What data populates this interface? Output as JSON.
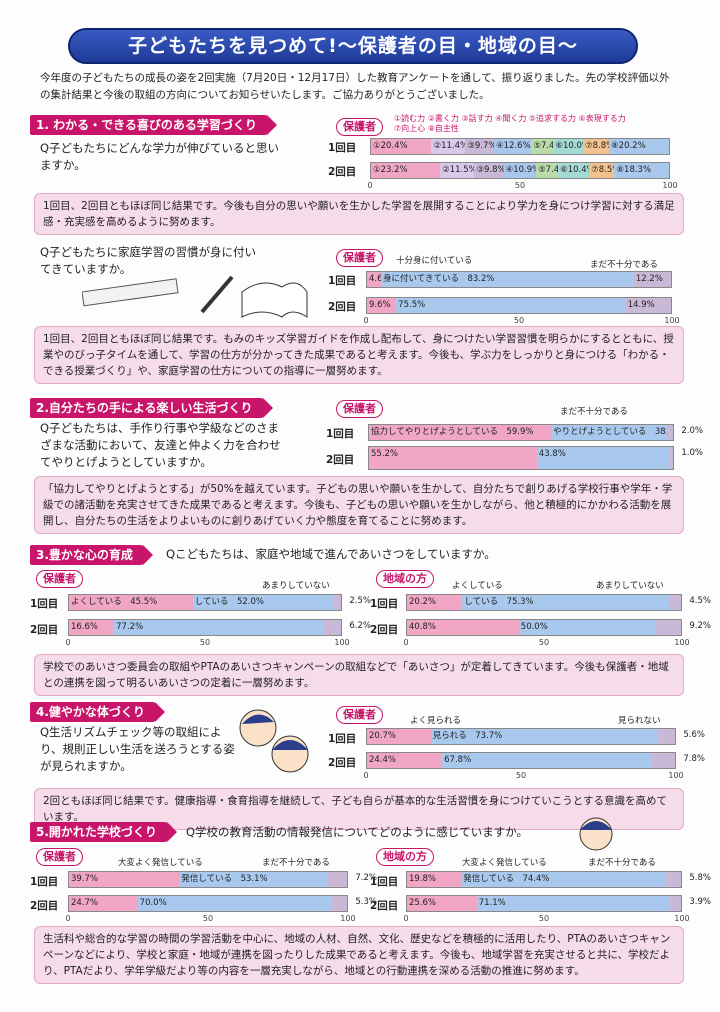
{
  "title": "子どもたちを見つめて!〜保護者の目・地域の目〜",
  "intro": "今年度の子どもたちの成長の姿を2回実施（7月20日・12月17日）した教育アンケートを通して、振り返りました。先の学校評価以外の集計結果と今後の取組の方向についてお知らせいたします。ご協力ありがとうございました。",
  "labels": {
    "guardian": "保護者",
    "community": "地域の方",
    "r1": "1回目",
    "r2": "2回目"
  },
  "s1": {
    "title": "1. わかる・できる喜びのある学習づくり",
    "q": "Q子どもたちにどんな学力が伸びていると思いますか。",
    "legend1": "①読む力 ②書く力 ③話す力 ④聞く力 ⑤追求する力 ⑥表現する力",
    "legend2": "⑦向上心 ⑧自主性",
    "note": "1回目、2回目ともほぼ同じ結果です。今後も自分の思いや願いを生かした学習を展開することにより学力を身につけ学習に対する満足感・充実感を高めるように努めます。",
    "q2": "Q子どもたちに家庭学習の習慣が身に付いてきていますか。",
    "cap2a": "十分身に付いている",
    "cap2b": "まだ不十分である",
    "note2": "1回目、2回目ともほぼ同じ結果です。もみのキッズ学習ガイドを作成し配布して、身につけたい学習習慣を明らかにするとともに、授業やのびっ子タイムを通して、学習の仕方が分かってきた成果であると考えます。今後も、学ぶ力をしっかりと身につける「わかる・できる授業づくり」や、家庭学習の仕方についての指導に一層努めます。"
  },
  "s2": {
    "title": "2.自分たちの手による楽しい生活づくり",
    "q": "Q子どもたちは、手作り行事や学級などのさまざまな活動において、友達と仲よく力を合わせてやりとげようとしていますか。",
    "cap": "まだ不十分である",
    "note": "「協力してやりとげようとする」が50%を越えています。子どもの思いや願いを生かして、自分たちで創りあげる学校行事や学年・学級での諸活動を充実させてきた成果であると考えます。今後も、子どもの思いや願いを生かしながら、他と積極的にかかわる活動を展開し、自分たちの生活をよりよいものに創りあげていく力や態度を育てることに努めます。"
  },
  "s3": {
    "title": "3.豊かな心の育成",
    "q": "Qこどもたちは、家庭や地域で進んであいさつをしていますか。",
    "cap_a": "あまりしていない",
    "cap_b": "よくしている",
    "note": "学校でのあいさつ委員会の取組やPTAのあいさつキャンペーンの取組などで「あいさつ」が定着してきています。今後も保護者・地域との連携を図って明るいあいさつの定着に一層努めます。"
  },
  "s4": {
    "title": "4.健やかな体づくり",
    "q": "Q生活リズムチェック等の取組により、規則正しい生活を送ろうとする姿が見られますか。",
    "cap_a": "よく見られる",
    "cap_b": "見られない",
    "note": "2回ともほぼ同じ結果です。健康指導・食育指導を継続して、子ども自らが基本的な生活習慣を身につけていこうとする意識を高めています。"
  },
  "s5": {
    "title": "5.開かれた学校づくり",
    "q": "Q学校の教育活動の情報発信についてどのように感じていますか。",
    "cap_a": "大変よく発信している",
    "cap_b": "まだ不十分である",
    "note": "生活科や総合的な学習の時間の学習活動を中心に、地域の人材、自然、文化、歴史などを積極的に活用したり、PTAのあいさつキャンペーンなどにより、学校と家庭・地域が連携を図ったりした成果であると考えます。今後も、地域学習を充実させると共に、学校だより、PTAだより、学年学級だより等の内容を一層充実しながら、地域との行動連携を深める活動の推進に努めます。"
  },
  "colors": {
    "pink": "#f0a6c4",
    "blue": "#a9c8ee",
    "grey": "#c9b8d6",
    "lilac": "#d9c8ea",
    "green": "#b9dcaa",
    "yellow": "#f5e49a",
    "orange": "#f4c28f",
    "teal": "#a5dbd6"
  },
  "charts": [
    {
      "id": "c1r1",
      "segs": [
        [
          "①20.4%",
          20.4,
          "pink"
        ],
        [
          "②11.4%",
          11.4,
          "lilac"
        ],
        [
          "③9.7%",
          9.7,
          "grey"
        ],
        [
          "④12.6%",
          12.6,
          "blue"
        ],
        [
          "⑤7.4%",
          7.4,
          "green"
        ],
        [
          "⑥10.0%",
          10.0,
          "teal"
        ],
        [
          "⑦8.8%",
          8.8,
          "orange"
        ],
        [
          "⑧20.2%",
          20.2,
          "blue"
        ]
      ]
    },
    {
      "id": "c1r2",
      "segs": [
        [
          "①23.2%",
          23.2,
          "pink"
        ],
        [
          "②11.5%",
          11.5,
          "lilac"
        ],
        [
          "③9.8%",
          9.8,
          "grey"
        ],
        [
          "④10.9%",
          10.9,
          "blue"
        ],
        [
          "⑤7.4%",
          7.4,
          "green"
        ],
        [
          "⑥10.4%",
          10.4,
          "teal"
        ],
        [
          "⑦8.5%",
          8.5,
          "orange"
        ],
        [
          "⑧18.3%",
          18.3,
          "blue"
        ]
      ]
    },
    {
      "id": "c2r1",
      "segs": [
        [
          "4.6%",
          4.6,
          "pink"
        ],
        [
          "身に付いてきている　83.2%",
          83.2,
          "blue"
        ],
        [
          "12.2%",
          12.2,
          "grey"
        ]
      ]
    },
    {
      "id": "c2r2",
      "segs": [
        [
          "9.6%",
          9.6,
          "pink"
        ],
        [
          "75.5%",
          75.5,
          "blue"
        ],
        [
          "14.9%",
          14.9,
          "grey"
        ]
      ]
    },
    {
      "id": "c3r1",
      "segs": [
        [
          "協力してやりとげようとしている　59.9%",
          59.9,
          "pink"
        ],
        [
          "やりとげようとしている　38.1%",
          38.1,
          "blue"
        ],
        [
          "",
          2.0,
          "grey"
        ]
      ]
    },
    {
      "id": "c3r2",
      "segs": [
        [
          "55.2%",
          55.2,
          "pink"
        ],
        [
          "43.8%",
          43.8,
          "blue"
        ],
        [
          "",
          1.0,
          "grey"
        ]
      ]
    },
    {
      "id": "c4r1",
      "segs": [
        [
          "よくしている　45.5%",
          45.5,
          "pink"
        ],
        [
          "している　52.0%",
          52.0,
          "blue"
        ],
        [
          "",
          2.5,
          "grey"
        ]
      ]
    },
    {
      "id": "c4r2",
      "segs": [
        [
          "16.6%",
          16.6,
          "pink"
        ],
        [
          "77.2%",
          77.2,
          "blue"
        ],
        [
          "",
          6.2,
          "grey"
        ]
      ]
    },
    {
      "id": "c5r1",
      "segs": [
        [
          "20.2%",
          20.2,
          "pink"
        ],
        [
          "している　75.3%",
          75.3,
          "blue"
        ],
        [
          "",
          4.5,
          "grey"
        ]
      ]
    },
    {
      "id": "c5r2",
      "segs": [
        [
          "40.8%",
          40.8,
          "pink"
        ],
        [
          "50.0%",
          50.0,
          "blue"
        ],
        [
          "",
          9.2,
          "grey"
        ]
      ]
    },
    {
      "id": "c6r1",
      "segs": [
        [
          "20.7%",
          20.7,
          "pink"
        ],
        [
          "見られる　73.7%",
          73.7,
          "blue"
        ],
        [
          "",
          5.6,
          "grey"
        ]
      ]
    },
    {
      "id": "c6r2",
      "segs": [
        [
          "24.4%",
          24.4,
          "pink"
        ],
        [
          "67.8%",
          67.8,
          "blue"
        ],
        [
          "",
          7.8,
          "grey"
        ]
      ]
    },
    {
      "id": "c7r1",
      "segs": [
        [
          "39.7%",
          39.7,
          "pink"
        ],
        [
          "発信している　53.1%",
          53.1,
          "blue"
        ],
        [
          "",
          7.2,
          "grey"
        ]
      ]
    },
    {
      "id": "c7r2",
      "segs": [
        [
          "24.7%",
          24.7,
          "pink"
        ],
        [
          "70.0%",
          70.0,
          "blue"
        ],
        [
          "",
          5.3,
          "grey"
        ]
      ]
    },
    {
      "id": "c8r1",
      "segs": [
        [
          "19.8%",
          19.8,
          "pink"
        ],
        [
          "発信している　74.4%",
          74.4,
          "blue"
        ],
        [
          "",
          5.8,
          "grey"
        ]
      ]
    },
    {
      "id": "c8r2",
      "segs": [
        [
          "25.6%",
          25.6,
          "pink"
        ],
        [
          "71.1%",
          71.1,
          "blue"
        ],
        [
          "",
          3.9,
          "grey"
        ]
      ]
    }
  ],
  "tails": {
    "c3r1": "2.0%",
    "c3r2": "1.0%",
    "c4r1": "2.5%",
    "c4r2": "6.2%",
    "c5r1": "4.5%",
    "c5r2": "9.2%",
    "c6r1": "5.6%",
    "c6r2": "7.8%",
    "c7r1": "7.2%",
    "c7r2": "5.3%",
    "c8r1": "5.8%",
    "c8r2": "3.9%"
  },
  "ticks": [
    "0",
    "50",
    "100"
  ]
}
